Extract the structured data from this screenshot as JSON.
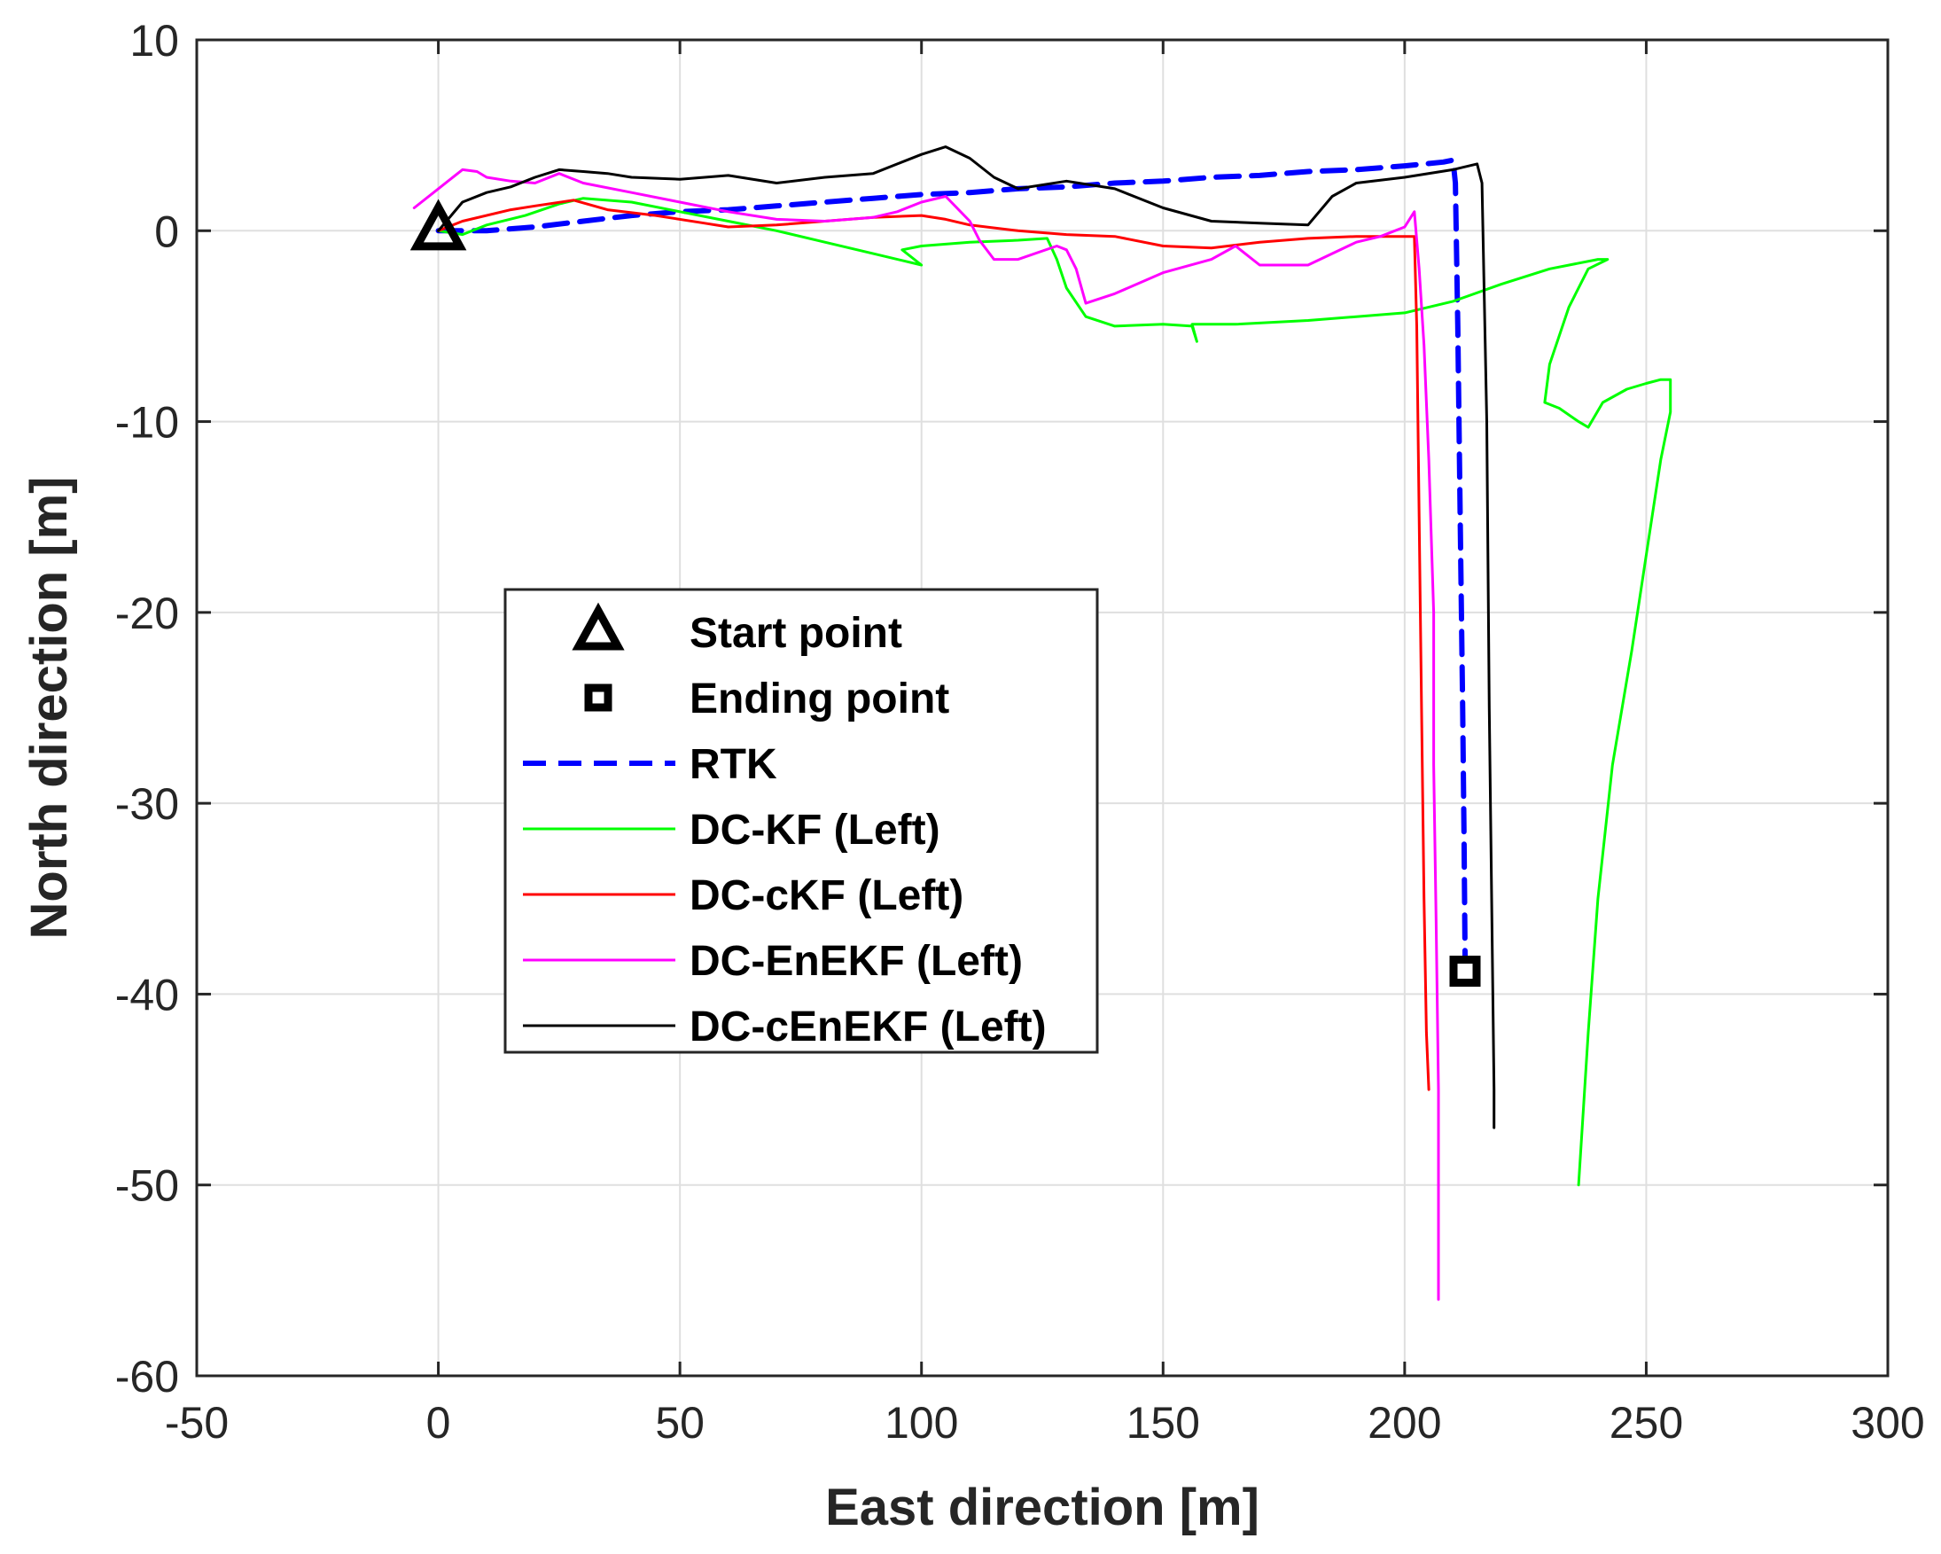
{
  "chart_data": {
    "type": "line",
    "xlabel": "East direction [m]",
    "ylabel": "North direction [m]",
    "xlim": [
      -50,
      300
    ],
    "ylim": [
      -60,
      10
    ],
    "xticks": [
      -50,
      0,
      50,
      100,
      150,
      200,
      250,
      300
    ],
    "yticks": [
      10,
      0,
      -10,
      -20,
      -30,
      -40,
      -50,
      -60
    ],
    "grid": true,
    "legend_position": "center-left",
    "markers": [
      {
        "name": "Start point",
        "shape": "triangle",
        "x": 0,
        "y": 0,
        "color": "#000000"
      },
      {
        "name": "Ending point",
        "shape": "square",
        "x": 212.5,
        "y": -38.8,
        "color": "#000000"
      }
    ],
    "series": [
      {
        "name": "RTK",
        "color": "#0000ff",
        "dashed": true,
        "points": [
          [
            0,
            0
          ],
          [
            10,
            0
          ],
          [
            20,
            0.2
          ],
          [
            30,
            0.5
          ],
          [
            40,
            0.8
          ],
          [
            50,
            1.0
          ],
          [
            60,
            1.1
          ],
          [
            70,
            1.3
          ],
          [
            80,
            1.5
          ],
          [
            90,
            1.7
          ],
          [
            100,
            1.9
          ],
          [
            110,
            2.0
          ],
          [
            120,
            2.2
          ],
          [
            130,
            2.3
          ],
          [
            140,
            2.5
          ],
          [
            150,
            2.6
          ],
          [
            160,
            2.8
          ],
          [
            170,
            2.9
          ],
          [
            180,
            3.1
          ],
          [
            190,
            3.2
          ],
          [
            200,
            3.4
          ],
          [
            208,
            3.6
          ],
          [
            210,
            3.7
          ],
          [
            210.5,
            2.5
          ],
          [
            211,
            -5
          ],
          [
            211.5,
            -15
          ],
          [
            212,
            -25
          ],
          [
            212.3,
            -32
          ],
          [
            212.5,
            -38
          ]
        ]
      },
      {
        "name": "DC-KF (Left)",
        "color": "#00ff00",
        "dashed": false,
        "points": [
          [
            0,
            0
          ],
          [
            5,
            -0.2
          ],
          [
            10,
            0.3
          ],
          [
            18,
            0.8
          ],
          [
            25,
            1.4
          ],
          [
            30,
            1.7
          ],
          [
            40,
            1.5
          ],
          [
            50,
            1.0
          ],
          [
            60,
            0.5
          ],
          [
            70,
            0
          ],
          [
            80,
            -0.6
          ],
          [
            90,
            -1.2
          ],
          [
            100,
            -1.8
          ],
          [
            96,
            -1.0
          ],
          [
            100,
            -0.8
          ],
          [
            110,
            -0.6
          ],
          [
            120,
            -0.5
          ],
          [
            126,
            -0.4
          ],
          [
            128,
            -1.5
          ],
          [
            130,
            -3.0
          ],
          [
            134,
            -4.5
          ],
          [
            140,
            -5.0
          ],
          [
            150,
            -4.9
          ],
          [
            156,
            -5.0
          ],
          [
            157,
            -5.8
          ],
          [
            156,
            -4.9
          ],
          [
            165,
            -4.9
          ],
          [
            180,
            -4.7
          ],
          [
            190,
            -4.5
          ],
          [
            200,
            -4.3
          ],
          [
            210,
            -3.7
          ],
          [
            220,
            -2.8
          ],
          [
            230,
            -2.0
          ],
          [
            240,
            -1.5
          ],
          [
            242,
            -1.5
          ],
          [
            238,
            -2.0
          ],
          [
            234,
            -4.0
          ],
          [
            230,
            -7.0
          ],
          [
            229,
            -9.0
          ],
          [
            232,
            -9.3
          ],
          [
            236,
            -10.0
          ],
          [
            238,
            -10.3
          ],
          [
            241,
            -9.0
          ],
          [
            246,
            -8.3
          ],
          [
            250,
            -8.0
          ],
          [
            253,
            -7.8
          ],
          [
            255,
            -7.8
          ],
          [
            255,
            -9.5
          ],
          [
            253,
            -12
          ],
          [
            250,
            -17
          ],
          [
            247,
            -22
          ],
          [
            243,
            -28
          ],
          [
            240,
            -35
          ],
          [
            238,
            -42
          ],
          [
            236,
            -50
          ]
        ]
      },
      {
        "name": "DC-cKF (Left)",
        "color": "#ff0000",
        "dashed": false,
        "points": [
          [
            0,
            0
          ],
          [
            5,
            0.5
          ],
          [
            15,
            1.1
          ],
          [
            20,
            1.3
          ],
          [
            28,
            1.6
          ],
          [
            35,
            1.1
          ],
          [
            45,
            0.8
          ],
          [
            55,
            0.4
          ],
          [
            60,
            0.2
          ],
          [
            70,
            0.3
          ],
          [
            80,
            0.5
          ],
          [
            90,
            0.7
          ],
          [
            100,
            0.8
          ],
          [
            105,
            0.6
          ],
          [
            110,
            0.3
          ],
          [
            120,
            0
          ],
          [
            130,
            -0.2
          ],
          [
            140,
            -0.3
          ],
          [
            150,
            -0.8
          ],
          [
            160,
            -0.9
          ],
          [
            170,
            -0.6
          ],
          [
            180,
            -0.4
          ],
          [
            190,
            -0.3
          ],
          [
            200,
            -0.3
          ],
          [
            202,
            -0.3
          ],
          [
            202.5,
            -5
          ],
          [
            203,
            -15
          ],
          [
            203.5,
            -25
          ],
          [
            204,
            -35
          ],
          [
            204.5,
            -42
          ],
          [
            205,
            -45
          ]
        ]
      },
      {
        "name": "DC-EnEKF (Left)",
        "color": "#ff00ff",
        "dashed": false,
        "points": [
          [
            -5,
            1.2
          ],
          [
            0,
            2.2
          ],
          [
            5,
            3.2
          ],
          [
            8,
            3.1
          ],
          [
            10,
            2.8
          ],
          [
            15,
            2.6
          ],
          [
            20,
            2.5
          ],
          [
            25,
            3.0
          ],
          [
            30,
            2.5
          ],
          [
            40,
            2.0
          ],
          [
            50,
            1.5
          ],
          [
            60,
            1.0
          ],
          [
            70,
            0.6
          ],
          [
            80,
            0.5
          ],
          [
            90,
            0.7
          ],
          [
            95,
            1.0
          ],
          [
            100,
            1.5
          ],
          [
            105,
            1.8
          ],
          [
            110,
            0.5
          ],
          [
            112,
            -0.5
          ],
          [
            115,
            -1.5
          ],
          [
            120,
            -1.5
          ],
          [
            128,
            -0.8
          ],
          [
            130,
            -1.0
          ],
          [
            132,
            -2.0
          ],
          [
            134,
            -3.8
          ],
          [
            140,
            -3.3
          ],
          [
            150,
            -2.2
          ],
          [
            160,
            -1.5
          ],
          [
            165,
            -0.8
          ],
          [
            170,
            -1.8
          ],
          [
            180,
            -1.8
          ],
          [
            190,
            -0.6
          ],
          [
            195,
            -0.3
          ],
          [
            200,
            0.2
          ],
          [
            202,
            1.0
          ],
          [
            203,
            -2
          ],
          [
            204,
            -6
          ],
          [
            205,
            -12
          ],
          [
            206,
            -20
          ],
          [
            206,
            -28
          ],
          [
            206.5,
            -36
          ],
          [
            207,
            -45
          ],
          [
            207,
            -56
          ]
        ]
      },
      {
        "name": "DC-cEnEKF (Left)",
        "color": "#000000",
        "dashed": false,
        "points": [
          [
            0,
            0
          ],
          [
            5,
            1.5
          ],
          [
            10,
            2.0
          ],
          [
            15,
            2.3
          ],
          [
            20,
            2.8
          ],
          [
            25,
            3.2
          ],
          [
            30,
            3.1
          ],
          [
            35,
            3.0
          ],
          [
            40,
            2.8
          ],
          [
            50,
            2.7
          ],
          [
            60,
            2.9
          ],
          [
            70,
            2.5
          ],
          [
            80,
            2.8
          ],
          [
            90,
            3.0
          ],
          [
            95,
            3.5
          ],
          [
            100,
            4.0
          ],
          [
            105,
            4.4
          ],
          [
            110,
            3.8
          ],
          [
            115,
            2.8
          ],
          [
            120,
            2.2
          ],
          [
            130,
            2.6
          ],
          [
            140,
            2.2
          ],
          [
            150,
            1.2
          ],
          [
            160,
            0.5
          ],
          [
            170,
            0.4
          ],
          [
            180,
            0.3
          ],
          [
            185,
            1.8
          ],
          [
            190,
            2.5
          ],
          [
            200,
            2.8
          ],
          [
            210,
            3.2
          ],
          [
            215,
            3.5
          ],
          [
            216,
            2.5
          ],
          [
            217,
            -10
          ],
          [
            217.5,
            -25
          ],
          [
            218,
            -35
          ],
          [
            218.5,
            -45
          ],
          [
            218.5,
            -47
          ]
        ]
      }
    ]
  }
}
